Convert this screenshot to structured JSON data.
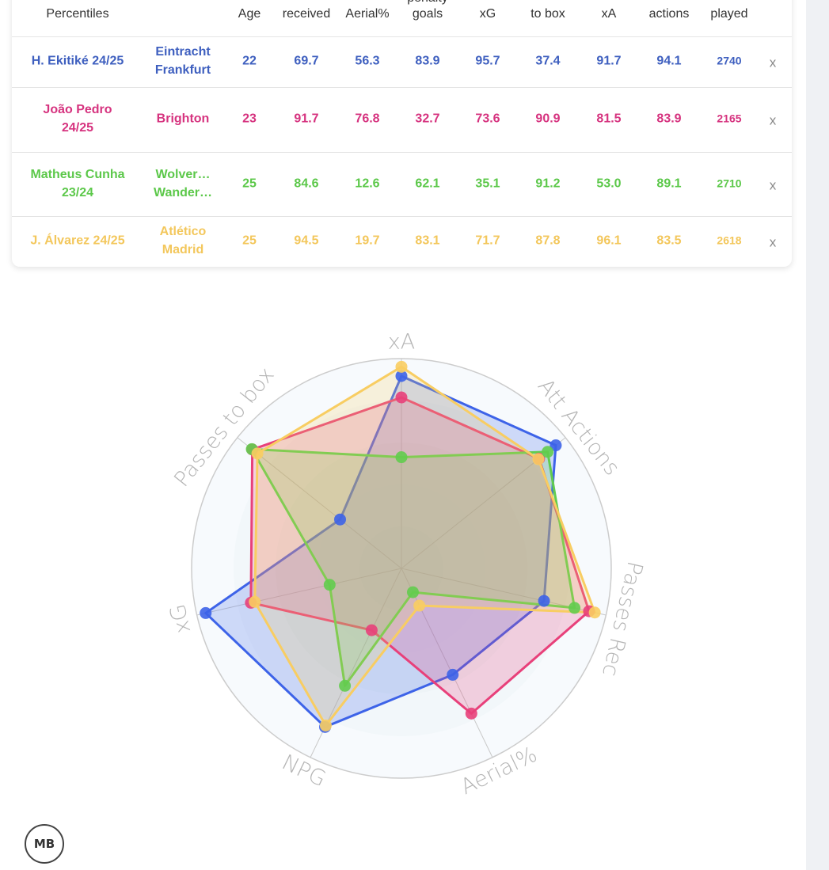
{
  "table": {
    "header": [
      "Percentiles",
      "Age",
      "received",
      "Aerial%",
      "penalty goals",
      "xG",
      "to box",
      "xA",
      "actions",
      "played"
    ],
    "rows": [
      {
        "name": "H. Ekitiké 24/25",
        "team": "Eintracht Frankfurt",
        "color": "#3e5fbf",
        "cells": [
          "22",
          "69.7",
          "56.3",
          "83.9",
          "95.7",
          "37.4",
          "91.7",
          "94.1",
          "2740"
        ],
        "remove": "x"
      },
      {
        "name": "João Pedro 24/25",
        "team": "Brighton",
        "color": "#d6337f",
        "cells": [
          "23",
          "91.7",
          "76.8",
          "32.7",
          "73.6",
          "90.9",
          "81.5",
          "83.9",
          "2165"
        ],
        "remove": "x"
      },
      {
        "name": "Matheus Cunha 23/24",
        "team": "Wolver… Wander…",
        "color": "#5cc84a",
        "cells": [
          "25",
          "84.6",
          "12.6",
          "62.1",
          "35.1",
          "91.2",
          "53.0",
          "89.1",
          "2710"
        ],
        "remove": "x"
      },
      {
        "name": "J. Álvarez 24/25",
        "team": "Atlético Madrid",
        "color": "#f3c75c",
        "cells": [
          "25",
          "94.5",
          "19.7",
          "83.1",
          "71.7",
          "87.8",
          "96.1",
          "83.5",
          "2618"
        ],
        "remove": "x"
      }
    ]
  },
  "chart_data": {
    "type": "radar",
    "categories": [
      "xA",
      "Att Actions",
      "Passes Rec",
      "Aerial%",
      "NPG",
      "xG",
      "Passes to box"
    ],
    "rlim": [
      0,
      100
    ],
    "series": [
      {
        "color": "#3d63e8",
        "values": [
          91.7,
          94.1,
          69.7,
          56.3,
          83.9,
          95.7,
          37.4
        ]
      },
      {
        "color": "#e8407a",
        "values": [
          81.5,
          83.9,
          91.7,
          76.8,
          32.7,
          73.6,
          90.9
        ]
      },
      {
        "color": "#62cc4e",
        "values": [
          53.0,
          89.1,
          84.6,
          12.6,
          62.1,
          35.1,
          91.2
        ]
      },
      {
        "color": "#f8cd62",
        "values": [
          96.1,
          83.5,
          94.5,
          19.7,
          83.1,
          71.7,
          87.8
        ]
      }
    ]
  },
  "logo": "MB"
}
